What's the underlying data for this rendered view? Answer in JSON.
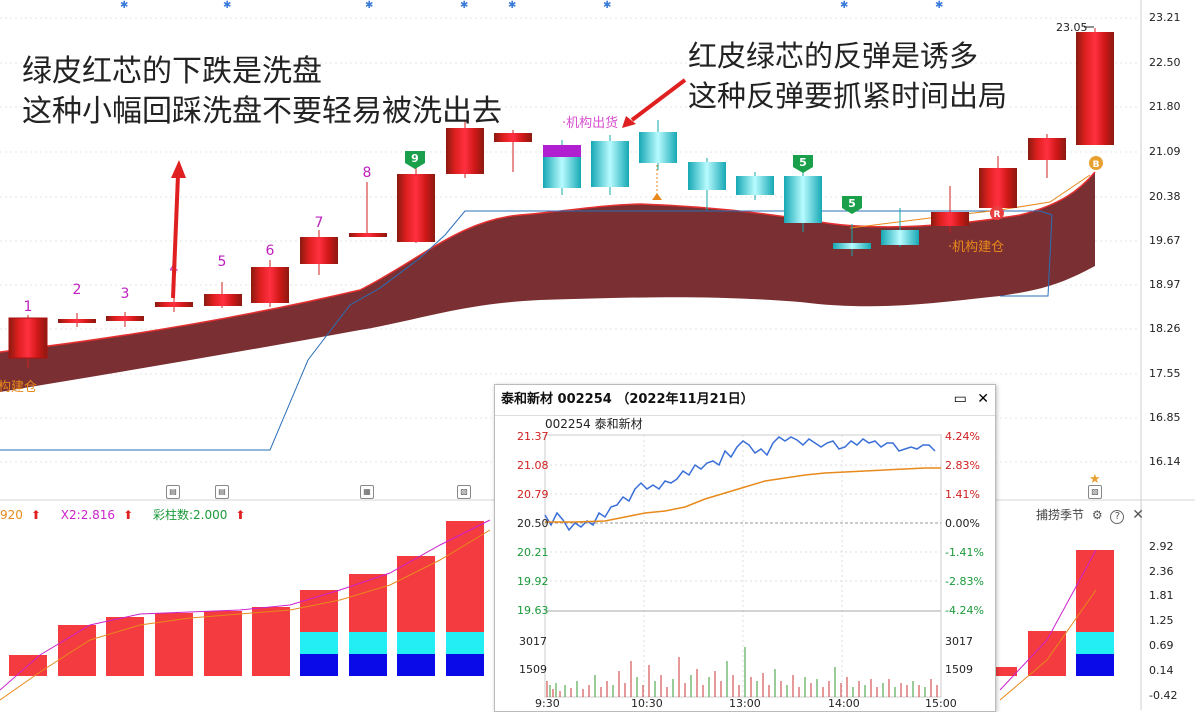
{
  "annotations": {
    "left_line1": "绿皮红芯的下跌是洗盘",
    "left_line2": "这种小幅回踩洗盘不要轻易被洗出去",
    "right_line1": "红皮绿芯的反弹是诱多",
    "right_line2": "这种反弹要抓紧时间出局"
  },
  "chart_labels": {
    "candle_numbers": [
      "1",
      "2",
      "3",
      "4",
      "5",
      "6",
      "7",
      "8"
    ],
    "institution_sell": "·机构出货",
    "institution_buy": "·机构建仓",
    "institution_buy_left": "构建仓",
    "high_marker": "23.05",
    "badge_9": "9",
    "badge_5a": "5",
    "badge_5b": "5",
    "badge_r1": "R",
    "badge_b": "B"
  },
  "price_axis": [
    "23.21",
    "22.50",
    "21.80",
    "21.09",
    "20.38",
    "19.67",
    "18.97",
    "18.26",
    "17.55",
    "16.85",
    "16.14"
  ],
  "indicator": {
    "legend_x1": "920",
    "legend_x2": "X2:2.816",
    "legend_bars": "彩柱数:2.000",
    "axis": [
      "2.92",
      "2.36",
      "1.81",
      "1.25",
      "0.69",
      "0.14",
      "-0.42"
    ],
    "indicator_name": "捕捞季节",
    "ctrl_settings": "⚙",
    "ctrl_help": "?",
    "ctrl_close": "✕"
  },
  "popup": {
    "title": "泰和新材 002254 （2022年11月21日）",
    "subtitle": "002254 泰和新材",
    "btn_minimize": "▭",
    "btn_close": "✕",
    "price_labels": [
      "21.37",
      "21.08",
      "20.79",
      "20.50",
      "20.21",
      "19.92",
      "19.63"
    ],
    "pct_labels": [
      "4.24%",
      "2.83%",
      "1.41%",
      "0.00%",
      "-1.41%",
      "-2.83%",
      "-4.24%"
    ],
    "volume_labels_left": [
      "3017",
      "1509"
    ],
    "volume_labels_right": [
      "3017",
      "1509"
    ],
    "time_labels": [
      "9:30",
      "10:30",
      "13:00",
      "14:00",
      "15:00"
    ]
  },
  "colors": {
    "up": "#e4322b",
    "down_cyan": "#36d6e0",
    "band": "#7a2f32",
    "magenta": "#cc22cc",
    "orange": "#e8891c"
  }
}
